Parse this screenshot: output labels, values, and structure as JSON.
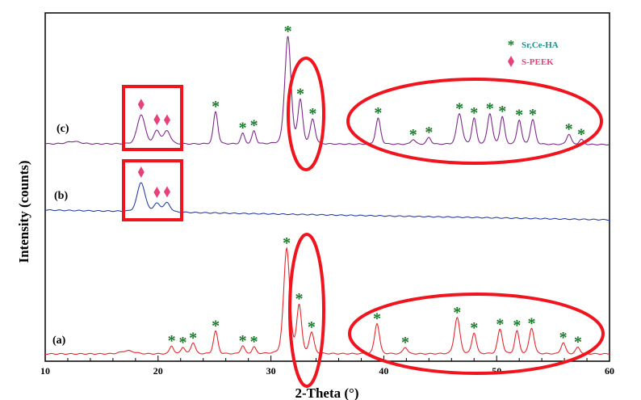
{
  "chart_data": {
    "type": "line",
    "title": "",
    "xlabel": "2-Theta (°)",
    "ylabel": "Intensity (counts)",
    "xlim": [
      10,
      60
    ],
    "ylim": [
      0,
      1000
    ],
    "xticks": [
      "10",
      "20",
      "30",
      "40",
      "50",
      "60"
    ],
    "grid": false,
    "legend": {
      "placement": "top-right",
      "entries": [
        {
          "label": "Sr,Ce-HA",
          "marker": "asterisk",
          "color": "#1a7a2a",
          "text_color": "#1f8f8a"
        },
        {
          "label": "S-PEEK",
          "marker": "diamond",
          "color": "#e8407a",
          "text_color": "#e8407a"
        }
      ]
    },
    "series": [
      {
        "name": "(a)",
        "color": "#e8262e",
        "baseline": [
          21,
          21
        ],
        "peaks": [
          [
            17.3,
            9,
            0.6,
            ""
          ],
          [
            21.2,
            23,
            0.18,
            "ha"
          ],
          [
            22.2,
            19,
            0.18,
            "ha"
          ],
          [
            23.1,
            32,
            0.2,
            "ha"
          ],
          [
            25.1,
            65,
            0.2,
            "ha"
          ],
          [
            27.5,
            23,
            0.18,
            "ha"
          ],
          [
            28.5,
            19,
            0.18,
            "ha"
          ],
          [
            31.4,
            302,
            0.28,
            "ha"
          ],
          [
            32.5,
            139,
            0.22,
            "ha"
          ],
          [
            33.6,
            60,
            0.22,
            "ha"
          ],
          [
            39.4,
            88,
            0.22,
            "ha"
          ],
          [
            41.9,
            19,
            0.2,
            "ha"
          ],
          [
            46.5,
            104,
            0.25,
            "ha"
          ],
          [
            48.0,
            60,
            0.2,
            "ha"
          ],
          [
            50.3,
            70,
            0.22,
            "ha"
          ],
          [
            51.8,
            65,
            0.2,
            "ha"
          ],
          [
            53.1,
            74,
            0.22,
            "ha"
          ],
          [
            55.9,
            32,
            0.2,
            "ha"
          ],
          [
            57.2,
            19,
            0.2,
            "ha"
          ]
        ]
      },
      {
        "name": "(b)",
        "color": "#2a3fa8",
        "baseline": [
          434,
          406
        ],
        "peaks": [
          [
            18.5,
            84,
            0.35,
            "peek"
          ],
          [
            19.9,
            23,
            0.3,
            "peek"
          ],
          [
            20.8,
            26,
            0.3,
            "peek"
          ]
        ]
      },
      {
        "name": "(c)",
        "color": "#7d2a8a",
        "baseline": [
          624,
          622
        ],
        "peaks": [
          [
            12.5,
            7,
            0.6,
            ""
          ],
          [
            18.5,
            84,
            0.35,
            "peek"
          ],
          [
            19.9,
            37,
            0.28,
            "peek"
          ],
          [
            20.8,
            37,
            0.3,
            "peek"
          ],
          [
            25.1,
            93,
            0.2,
            "ha"
          ],
          [
            27.5,
            30,
            0.18,
            "ha"
          ],
          [
            28.5,
            37,
            0.18,
            "ha"
          ],
          [
            31.5,
            309,
            0.28,
            "ha"
          ],
          [
            32.6,
            123,
            0.22,
            "ha"
          ],
          [
            33.7,
            70,
            0.22,
            "ha"
          ],
          [
            39.5,
            74,
            0.22,
            "ha"
          ],
          [
            42.6,
            14,
            0.2,
            "ha"
          ],
          [
            44.0,
            19,
            0.2,
            "ha"
          ],
          [
            46.7,
            88,
            0.25,
            "ha"
          ],
          [
            48.0,
            74,
            0.2,
            "ha"
          ],
          [
            49.4,
            88,
            0.22,
            "ha"
          ],
          [
            50.5,
            79,
            0.2,
            "ha"
          ],
          [
            52.0,
            70,
            0.2,
            "ha"
          ],
          [
            53.2,
            70,
            0.22,
            "ha"
          ],
          [
            56.4,
            30,
            0.2,
            "ha"
          ],
          [
            57.5,
            14,
            0.2,
            "ha"
          ]
        ]
      }
    ]
  }
}
